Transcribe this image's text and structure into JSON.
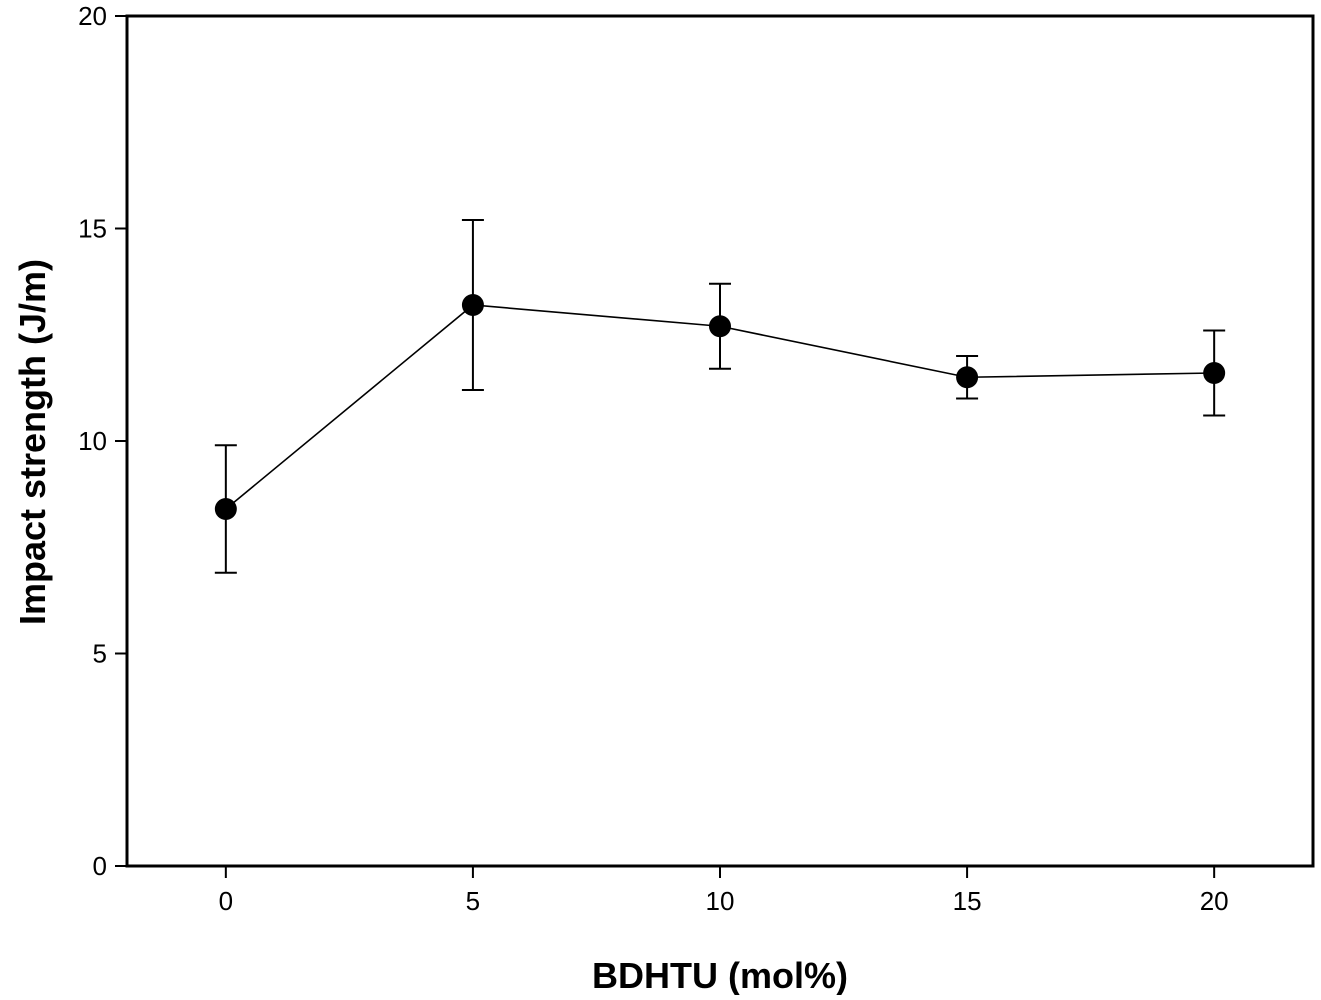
{
  "chart_data": {
    "type": "scatter",
    "title": "",
    "xlabel": "BDHTU (mol%)",
    "ylabel": "Impact strength (J/m)",
    "xlim": [
      -2,
      22
    ],
    "ylim": [
      0,
      20
    ],
    "xticks": [
      0,
      5,
      10,
      15,
      20
    ],
    "yticks": [
      0,
      5,
      10,
      15,
      20
    ],
    "grid": false,
    "legend": "none",
    "series": [
      {
        "x": [
          0,
          5,
          10,
          15,
          20
        ],
        "y": [
          8.4,
          13.2,
          12.7,
          11.5,
          11.6
        ],
        "error": [
          1.5,
          2.0,
          1.0,
          0.5,
          1.0
        ],
        "connected": true,
        "marker": "filled-circle",
        "color": "#000000"
      }
    ]
  }
}
